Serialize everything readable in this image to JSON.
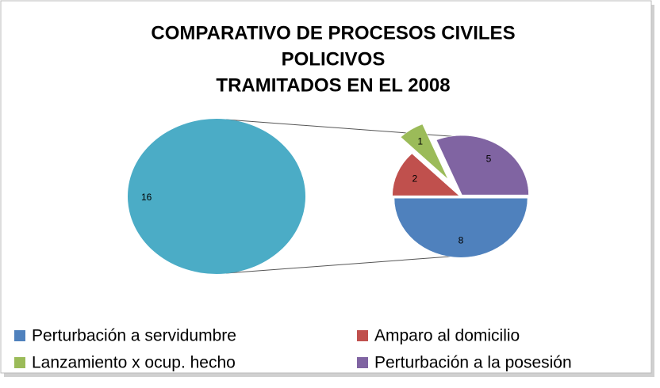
{
  "chart_data": {
    "type": "pie_of_pie",
    "title_lines": [
      "COMPARATIVO DE PROCESOS CIVILES",
      "POLICIVOS",
      "TRAMITADOS EN EL 2008"
    ],
    "main_pie": {
      "values": [
        16
      ],
      "color": "#4bacc6"
    },
    "categories": [
      "Perturbación a servidumbre",
      "Amparo al domicilio",
      "Lanzamiento x ocup. hecho",
      "Perturbación a la posesión"
    ],
    "values": [
      8,
      2,
      1,
      5
    ],
    "colors": [
      "#4f81bd",
      "#c0504d",
      "#9bbb59",
      "#8064a2"
    ],
    "exploded": [
      false,
      false,
      true,
      false
    ]
  }
}
